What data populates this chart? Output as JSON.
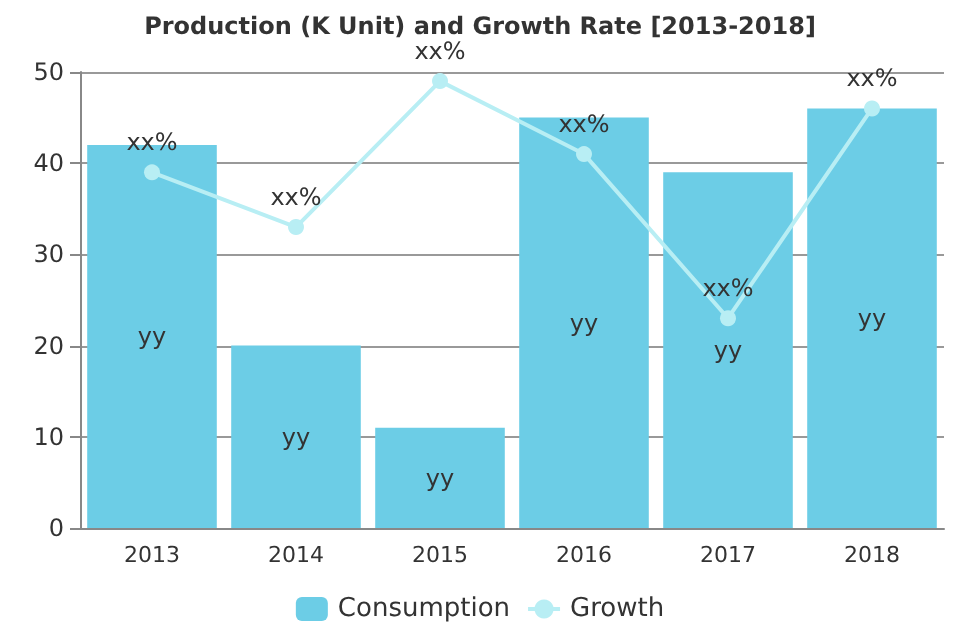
{
  "chart_data": {
    "type": "bar",
    "title": "Production (K Unit) and Growth Rate [2013-2018]",
    "categories": [
      "2013",
      "2014",
      "2015",
      "2016",
      "2017",
      "2018"
    ],
    "series": [
      {
        "name": "Consumption",
        "color": "#6ccde6",
        "values": [
          42,
          20,
          11,
          45,
          39,
          46
        ],
        "value_labels": [
          "yy",
          "yy",
          "yy",
          "yy",
          "yy",
          "yy"
        ]
      },
      {
        "name": "Growth",
        "type": "line",
        "color": "#b8eef4",
        "values": [
          39,
          33,
          49,
          41,
          23,
          46
        ],
        "value_labels": [
          "xx%",
          "xx%",
          "xx%",
          "xx%",
          "xx%",
          "xx%"
        ],
        "marker": "circle"
      }
    ],
    "ylim": [
      0,
      50
    ],
    "yticks": [
      0,
      10,
      20,
      30,
      40,
      50
    ],
    "grid": "y",
    "legend": "bottom"
  }
}
